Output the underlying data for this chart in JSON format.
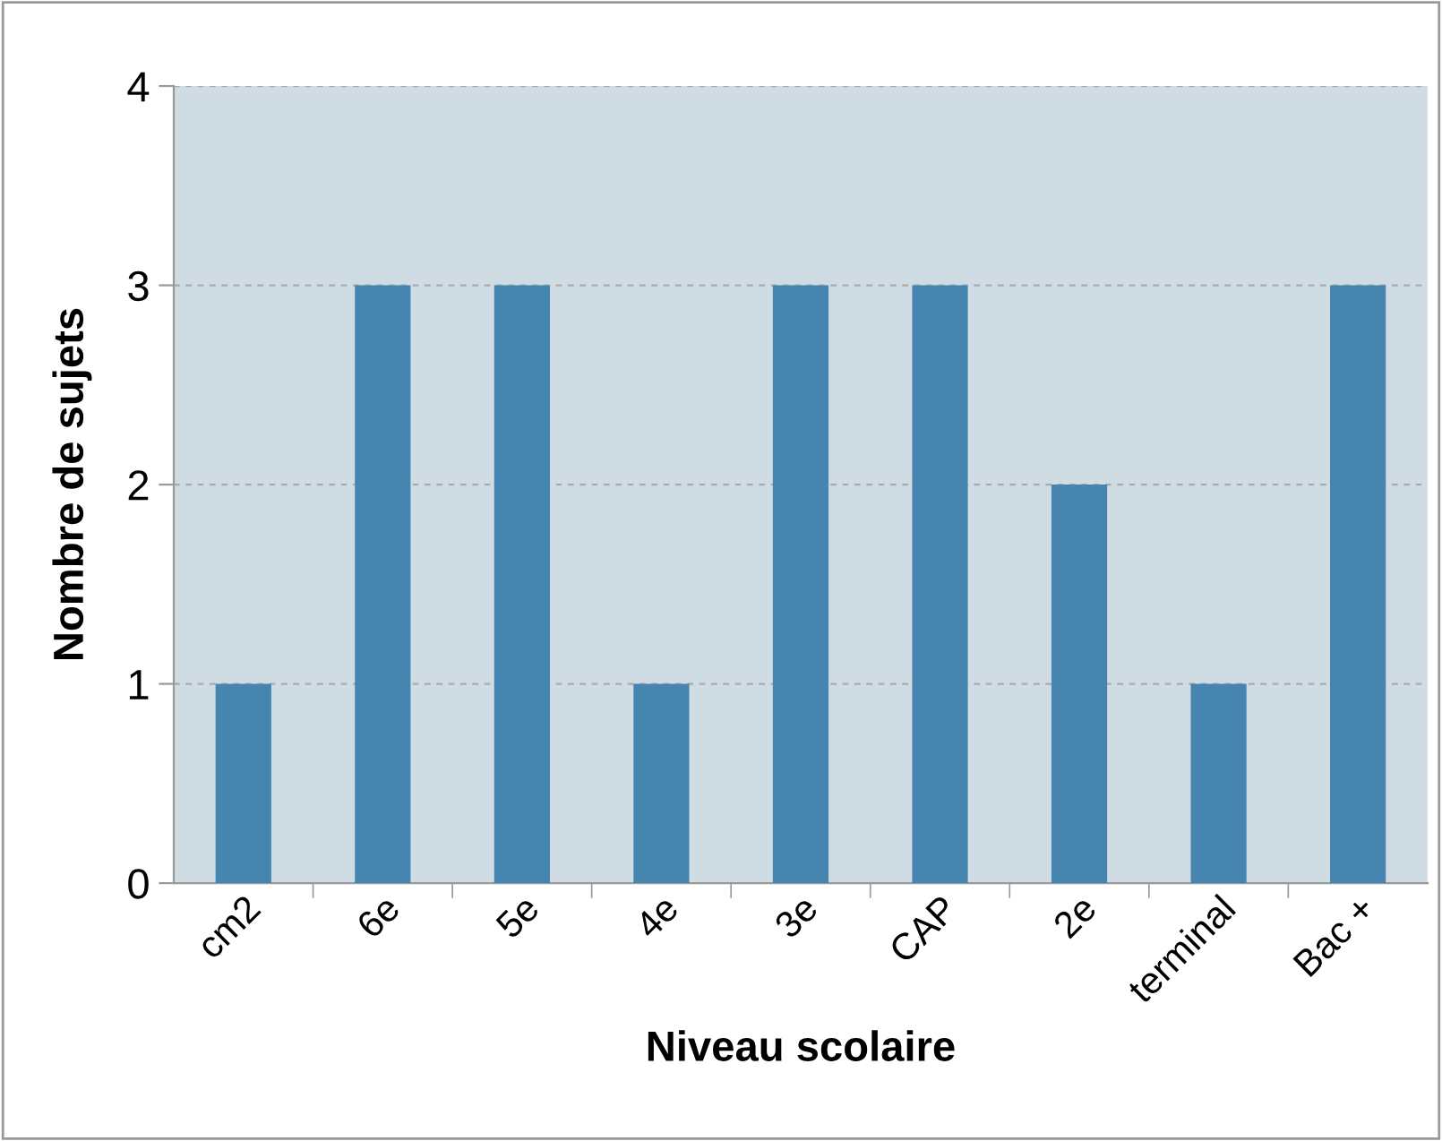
{
  "chart_data": {
    "type": "bar",
    "xlabel": "Niveau scolaire",
    "ylabel": "Nombre de sujets",
    "categories": [
      "cm2",
      "6e",
      "5e",
      "4e",
      "3e",
      "CAP",
      "2e",
      "terminal",
      "Bac +"
    ],
    "values": [
      1,
      3,
      3,
      1,
      3,
      3,
      2,
      1,
      3
    ],
    "color": "#4585b0",
    "ylim": [
      0,
      4
    ],
    "yticks": [
      0,
      1,
      2,
      3,
      4
    ],
    "grid": "y",
    "legend": false
  }
}
